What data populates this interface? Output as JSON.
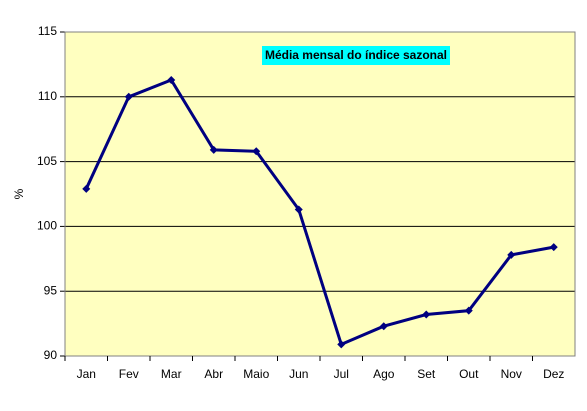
{
  "chart_data": {
    "type": "line",
    "title": "Média mensal do índice sazonal",
    "y_label": "%",
    "categories": [
      "Jan",
      "Fev",
      "Mar",
      "Abr",
      "Maio",
      "Jun",
      "Jul",
      "Ago",
      "Set",
      "Out",
      "Nov",
      "Dez"
    ],
    "series": [
      {
        "name": "Média mensal",
        "color": "#000080",
        "values": [
          102.9,
          110.0,
          111.3,
          105.9,
          105.8,
          101.3,
          90.9,
          92.3,
          93.2,
          93.5,
          97.8,
          98.4
        ]
      }
    ],
    "ylim": [
      90,
      115
    ],
    "yticks": [
      90,
      95,
      100,
      105,
      110,
      115
    ],
    "grid": true,
    "background": "#ffffc0",
    "title_background": "#00ffff"
  }
}
